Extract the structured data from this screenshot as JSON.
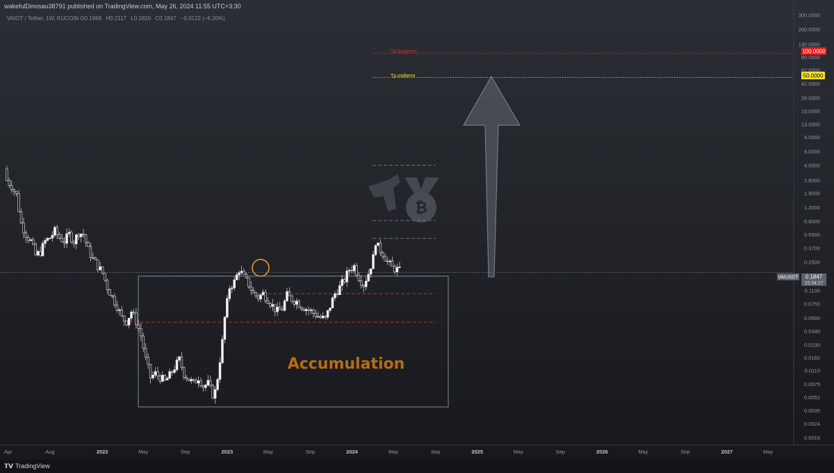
{
  "header": {
    "publish_info": "wakefulDinosau38791 published on TradingView.com, May 26, 2024 11:55 UTC+3:30",
    "symbol": "VAIOT / Tether, 1W, KUCOIN",
    "ohlc": {
      "o_label": "O",
      "o": "0.1969",
      "h_label": "H",
      "h": "0.2117",
      "l_label": "L",
      "l": "0.1820",
      "c_label": "C",
      "c": "0.1847",
      "change": "−0.0122 (−6.20%)"
    }
  },
  "footer": {
    "brand": "TradingView"
  },
  "chart_data": {
    "type": "candlestick",
    "scale": "log",
    "title": "VAIOT / Tether, 1W, KUCOIN",
    "ylim": [
      0.0017,
      350
    ],
    "xlim": [
      "2021-03-08",
      "2027-07-15"
    ],
    "y_ticks": [
      "300.0000",
      "200.0000",
      "130.0000",
      "90.0000",
      "62.0000",
      "42.0000",
      "28.0000",
      "19.0000",
      "13.0000",
      "9.0000",
      "6.0000",
      "4.0000",
      "2.6000",
      "1.8000",
      "1.2000",
      "0.8000",
      "0.5500",
      "0.3700",
      "0.2500",
      "0.1100",
      "0.0750",
      "0.0500",
      "0.0340",
      "0.0230",
      "0.0160",
      "0.0110",
      "0.0075",
      "0.0051",
      "0.0035",
      "0.0024",
      "0.0016"
    ],
    "x_ticks": [
      {
        "label": "Apr",
        "date": "2021-04-01"
      },
      {
        "label": "Aug",
        "date": "2021-08-01"
      },
      {
        "label": "2022",
        "date": "2022-01-01"
      },
      {
        "label": "May",
        "date": "2022-05-01"
      },
      {
        "label": "Sep",
        "date": "2022-09-01"
      },
      {
        "label": "2023",
        "date": "2023-01-01"
      },
      {
        "label": "May",
        "date": "2023-05-01"
      },
      {
        "label": "Sep",
        "date": "2023-09-01"
      },
      {
        "label": "2024",
        "date": "2024-01-01"
      },
      {
        "label": "May",
        "date": "2024-05-01"
      },
      {
        "label": "Sep",
        "date": "2024-09-01"
      },
      {
        "label": "2025",
        "date": "2025-01-01"
      },
      {
        "label": "May",
        "date": "2025-05-01"
      },
      {
        "label": "Sep",
        "date": "2025-09-01"
      },
      {
        "label": "2026",
        "date": "2026-01-01"
      },
      {
        "label": "May",
        "date": "2026-05-01"
      },
      {
        "label": "Sep",
        "date": "2026-09-01"
      },
      {
        "label": "2027",
        "date": "2027-01-01"
      },
      {
        "label": "May",
        "date": "2027-05-01"
      }
    ],
    "closes": [
      {
        "x": "2021-03-28",
        "y": 2.6
      },
      {
        "x": "2021-04-11",
        "y": 2.2
      },
      {
        "x": "2021-04-25",
        "y": 1.7
      },
      {
        "x": "2021-05-09",
        "y": 0.75
      },
      {
        "x": "2021-05-23",
        "y": 0.55
      },
      {
        "x": "2021-06-06",
        "y": 0.45
      },
      {
        "x": "2021-06-20",
        "y": 0.3
      },
      {
        "x": "2021-07-04",
        "y": 0.33
      },
      {
        "x": "2021-07-18",
        "y": 0.45
      },
      {
        "x": "2021-08-01",
        "y": 0.5
      },
      {
        "x": "2021-08-15",
        "y": 0.6
      },
      {
        "x": "2021-08-29",
        "y": 0.5
      },
      {
        "x": "2021-09-12",
        "y": 0.45
      },
      {
        "x": "2021-09-26",
        "y": 0.55
      },
      {
        "x": "2021-10-10",
        "y": 0.45
      },
      {
        "x": "2021-10-24",
        "y": 0.58
      },
      {
        "x": "2021-11-07",
        "y": 0.55
      },
      {
        "x": "2021-11-21",
        "y": 0.35
      },
      {
        "x": "2021-12-05",
        "y": 0.27
      },
      {
        "x": "2021-12-19",
        "y": 0.22
      },
      {
        "x": "2022-01-02",
        "y": 0.18
      },
      {
        "x": "2022-01-16",
        "y": 0.12
      },
      {
        "x": "2022-01-30",
        "y": 0.09
      },
      {
        "x": "2022-02-13",
        "y": 0.07
      },
      {
        "x": "2022-02-27",
        "y": 0.05
      },
      {
        "x": "2022-03-13",
        "y": 0.045
      },
      {
        "x": "2022-03-27",
        "y": 0.06
      },
      {
        "x": "2022-04-10",
        "y": 0.045
      },
      {
        "x": "2022-04-24",
        "y": 0.03
      },
      {
        "x": "2022-05-08",
        "y": 0.015
      },
      {
        "x": "2022-05-22",
        "y": 0.009
      },
      {
        "x": "2022-06-05",
        "y": 0.01
      },
      {
        "x": "2022-06-19",
        "y": 0.009
      },
      {
        "x": "2022-07-03",
        "y": 0.008
      },
      {
        "x": "2022-07-17",
        "y": 0.0095
      },
      {
        "x": "2022-07-31",
        "y": 0.012
      },
      {
        "x": "2022-08-14",
        "y": 0.015
      },
      {
        "x": "2022-08-28",
        "y": 0.01
      },
      {
        "x": "2022-09-11",
        "y": 0.0085
      },
      {
        "x": "2022-09-25",
        "y": 0.0075
      },
      {
        "x": "2022-10-09",
        "y": 0.009
      },
      {
        "x": "2022-10-23",
        "y": 0.007
      },
      {
        "x": "2022-11-06",
        "y": 0.0075
      },
      {
        "x": "2022-11-20",
        "y": 0.0055
      },
      {
        "x": "2022-11-27",
        "y": 0.006
      },
      {
        "x": "2022-12-04",
        "y": 0.009
      },
      {
        "x": "2022-12-11",
        "y": 0.015
      },
      {
        "x": "2022-12-18",
        "y": 0.025
      },
      {
        "x": "2022-12-25",
        "y": 0.05
      },
      {
        "x": "2023-01-08",
        "y": 0.12
      },
      {
        "x": "2023-01-22",
        "y": 0.14
      },
      {
        "x": "2023-02-05",
        "y": 0.2
      },
      {
        "x": "2023-02-19",
        "y": 0.16
      },
      {
        "x": "2023-03-05",
        "y": 0.13
      },
      {
        "x": "2023-03-19",
        "y": 0.1
      },
      {
        "x": "2023-04-02",
        "y": 0.09
      },
      {
        "x": "2023-04-16",
        "y": 0.1
      },
      {
        "x": "2023-04-30",
        "y": 0.085
      },
      {
        "x": "2023-05-14",
        "y": 0.07
      },
      {
        "x": "2023-05-28",
        "y": 0.06
      },
      {
        "x": "2023-06-11",
        "y": 0.065
      },
      {
        "x": "2023-06-25",
        "y": 0.095
      },
      {
        "x": "2023-07-09",
        "y": 0.085
      },
      {
        "x": "2023-07-23",
        "y": 0.08
      },
      {
        "x": "2023-08-06",
        "y": 0.07
      },
      {
        "x": "2023-08-20",
        "y": 0.065
      },
      {
        "x": "2023-09-03",
        "y": 0.06
      },
      {
        "x": "2023-09-17",
        "y": 0.055
      },
      {
        "x": "2023-10-01",
        "y": 0.05
      },
      {
        "x": "2023-10-15",
        "y": 0.048
      },
      {
        "x": "2023-10-29",
        "y": 0.07
      },
      {
        "x": "2023-11-12",
        "y": 0.1
      },
      {
        "x": "2023-11-26",
        "y": 0.12
      },
      {
        "x": "2023-12-10",
        "y": 0.15
      },
      {
        "x": "2023-12-24",
        "y": 0.2
      },
      {
        "x": "2024-01-07",
        "y": 0.22
      },
      {
        "x": "2024-01-21",
        "y": 0.16
      },
      {
        "x": "2024-02-04",
        "y": 0.13
      },
      {
        "x": "2024-02-18",
        "y": 0.18
      },
      {
        "x": "2024-03-03",
        "y": 0.28
      },
      {
        "x": "2024-03-10",
        "y": 0.45
      },
      {
        "x": "2024-03-17",
        "y": 0.38
      },
      {
        "x": "2024-03-31",
        "y": 0.32
      },
      {
        "x": "2024-04-14",
        "y": 0.25
      },
      {
        "x": "2024-04-28",
        "y": 0.21
      },
      {
        "x": "2024-05-12",
        "y": 0.2
      },
      {
        "x": "2024-05-26",
        "y": 0.1847
      }
    ],
    "levels": [
      {
        "name": "Tp.longterm",
        "price": 100,
        "color": "#d32f2f",
        "style": "dotted",
        "from": "2024-03-01",
        "to": "2027-07-15"
      },
      {
        "name": "Tp.midterm",
        "price": 50,
        "color": "#c9bf2a",
        "style": "dotted",
        "from": "2024-03-01",
        "to": "2027-07-15"
      },
      {
        "name": "resistance-upper",
        "price": 0.1,
        "color": "#c62828",
        "style": "dashed",
        "from": "2023-03-12",
        "to": "2024-09-01"
      },
      {
        "name": "resistance-lower",
        "price": 0.044,
        "color": "#c62828",
        "style": "dashed",
        "from": "2022-03-20",
        "to": "2024-09-01"
      },
      {
        "name": "fib-4",
        "price": 4.0,
        "color": "#6f7280",
        "style": "dashed",
        "from": "2024-03-01",
        "to": "2024-09-01"
      },
      {
        "name": "fib-0.8",
        "price": 0.82,
        "color": "#6f7280",
        "style": "dashed",
        "from": "2024-03-01",
        "to": "2024-09-01"
      },
      {
        "name": "fib-0.5",
        "price": 0.49,
        "color": "#6f7280",
        "style": "dashed",
        "from": "2024-03-01",
        "to": "2024-09-01"
      },
      {
        "name": "last-price",
        "price": 0.1847,
        "color": "#6f7280",
        "style": "dotted",
        "from": "2021-03-08",
        "to": "2027-07-15"
      }
    ],
    "annotations": {
      "accumulation": "Accumulation",
      "tp_longterm": "Tp.longterm",
      "tp_midterm": "Tp.midterm"
    },
    "price_tags": {
      "longterm": "100.0000",
      "midterm": "50.0000",
      "pair": "VAIUSDT",
      "last": "0.1847",
      "countdown": "15:34:27"
    }
  }
}
